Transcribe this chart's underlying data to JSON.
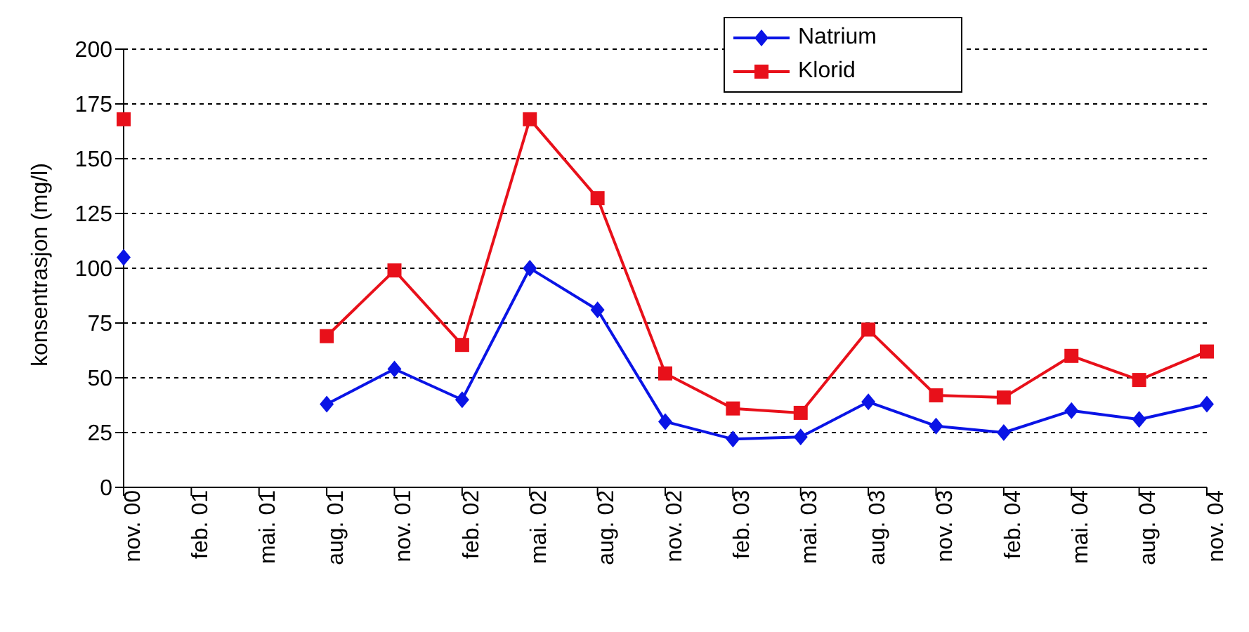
{
  "chart_data": {
    "type": "line",
    "ylabel": "konsentrasjon (mg/l)",
    "categories": [
      "nov. 00",
      "feb. 01",
      "mai. 01",
      "aug. 01",
      "nov. 01",
      "feb. 02",
      "mai. 02",
      "aug. 02",
      "nov. 02",
      "feb. 03",
      "mai. 03",
      "aug. 03",
      "nov. 03",
      "feb. 04",
      "mai. 04",
      "aug. 04",
      "nov. 04"
    ],
    "series": [
      {
        "name": "Natrium",
        "color": "#0a14e6",
        "marker": "diamond",
        "values": [
          105,
          null,
          null,
          38,
          54,
          40,
          100,
          81,
          30,
          22,
          23,
          39,
          28,
          25,
          35,
          31,
          38
        ]
      },
      {
        "name": "Klorid",
        "color": "#e8101a",
        "marker": "square",
        "values": [
          168,
          null,
          null,
          69,
          99,
          65,
          168,
          132,
          52,
          36,
          34,
          72,
          42,
          41,
          60,
          49,
          62
        ]
      }
    ],
    "ylim": [
      0,
      200
    ],
    "yticks": [
      0,
      25,
      50,
      75,
      100,
      125,
      150,
      175,
      200
    ],
    "grid": "y",
    "legend": "top"
  }
}
